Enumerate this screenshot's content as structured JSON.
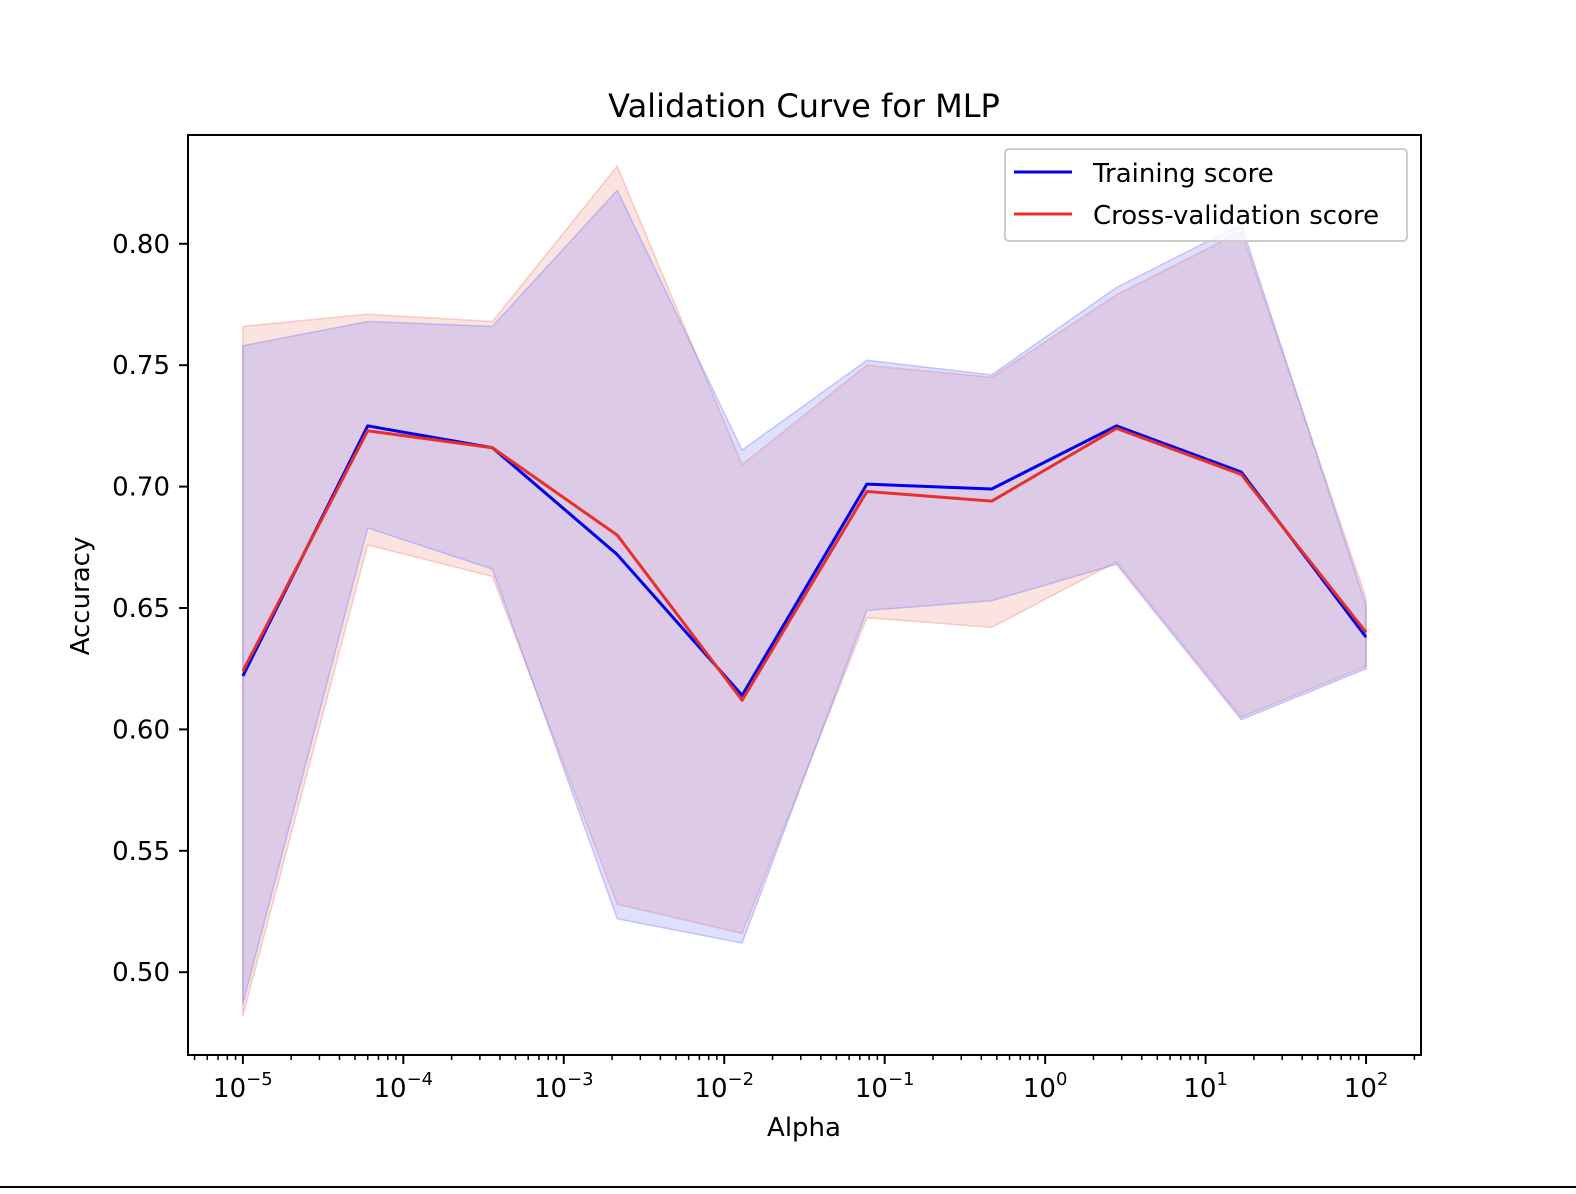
{
  "chart_data": {
    "type": "line",
    "title": "Validation Curve for MLP",
    "xlabel": "Alpha",
    "ylabel": "Accuracy",
    "xscale": "log",
    "xlim": [
      4.55e-06,
      220
    ],
    "ylim": [
      0.4659,
      0.8448
    ],
    "x": [
      1e-05,
      5.995e-05,
      0.0003594,
      0.002154,
      0.01292,
      0.07743,
      0.4642,
      2.783,
      16.68,
      100
    ],
    "xticks": [
      {
        "value": 1e-05,
        "base": "10",
        "exp": "−5"
      },
      {
        "value": 0.0001,
        "base": "10",
        "exp": "−4"
      },
      {
        "value": 0.001,
        "base": "10",
        "exp": "−3"
      },
      {
        "value": 0.01,
        "base": "10",
        "exp": "−2"
      },
      {
        "value": 0.1,
        "base": "10",
        "exp": "−1"
      },
      {
        "value": 1,
        "base": "10",
        "exp": "0"
      },
      {
        "value": 10,
        "base": "10",
        "exp": "1"
      },
      {
        "value": 100,
        "base": "10",
        "exp": "2"
      }
    ],
    "yticks": [
      {
        "value": 0.5,
        "label": "0.50"
      },
      {
        "value": 0.55,
        "label": "0.55"
      },
      {
        "value": 0.6,
        "label": "0.60"
      },
      {
        "value": 0.65,
        "label": "0.65"
      },
      {
        "value": 0.7,
        "label": "0.70"
      },
      {
        "value": 0.75,
        "label": "0.75"
      },
      {
        "value": 0.8,
        "label": "0.80"
      }
    ],
    "grid": false,
    "legend_position": "top-right",
    "series": [
      {
        "name": "Training score",
        "color": "#0000ee",
        "fill_color": "#8080ff",
        "values": [
          0.622,
          0.725,
          0.716,
          0.672,
          0.614,
          0.701,
          0.699,
          0.725,
          0.706,
          0.638
        ],
        "upper": [
          0.758,
          0.768,
          0.766,
          0.822,
          0.715,
          0.752,
          0.746,
          0.782,
          0.808,
          0.651
        ],
        "lower": [
          0.487,
          0.683,
          0.666,
          0.522,
          0.512,
          0.649,
          0.653,
          0.668,
          0.604,
          0.625
        ]
      },
      {
        "name": "Cross-validation score",
        "color": "#e8302a",
        "fill_color": "#f08f80",
        "values": [
          0.624,
          0.723,
          0.716,
          0.68,
          0.612,
          0.698,
          0.694,
          0.724,
          0.705,
          0.64
        ],
        "upper": [
          0.766,
          0.771,
          0.768,
          0.832,
          0.709,
          0.75,
          0.745,
          0.779,
          0.805,
          0.654
        ],
        "lower": [
          0.482,
          0.676,
          0.663,
          0.528,
          0.516,
          0.646,
          0.642,
          0.669,
          0.605,
          0.626
        ]
      }
    ]
  }
}
